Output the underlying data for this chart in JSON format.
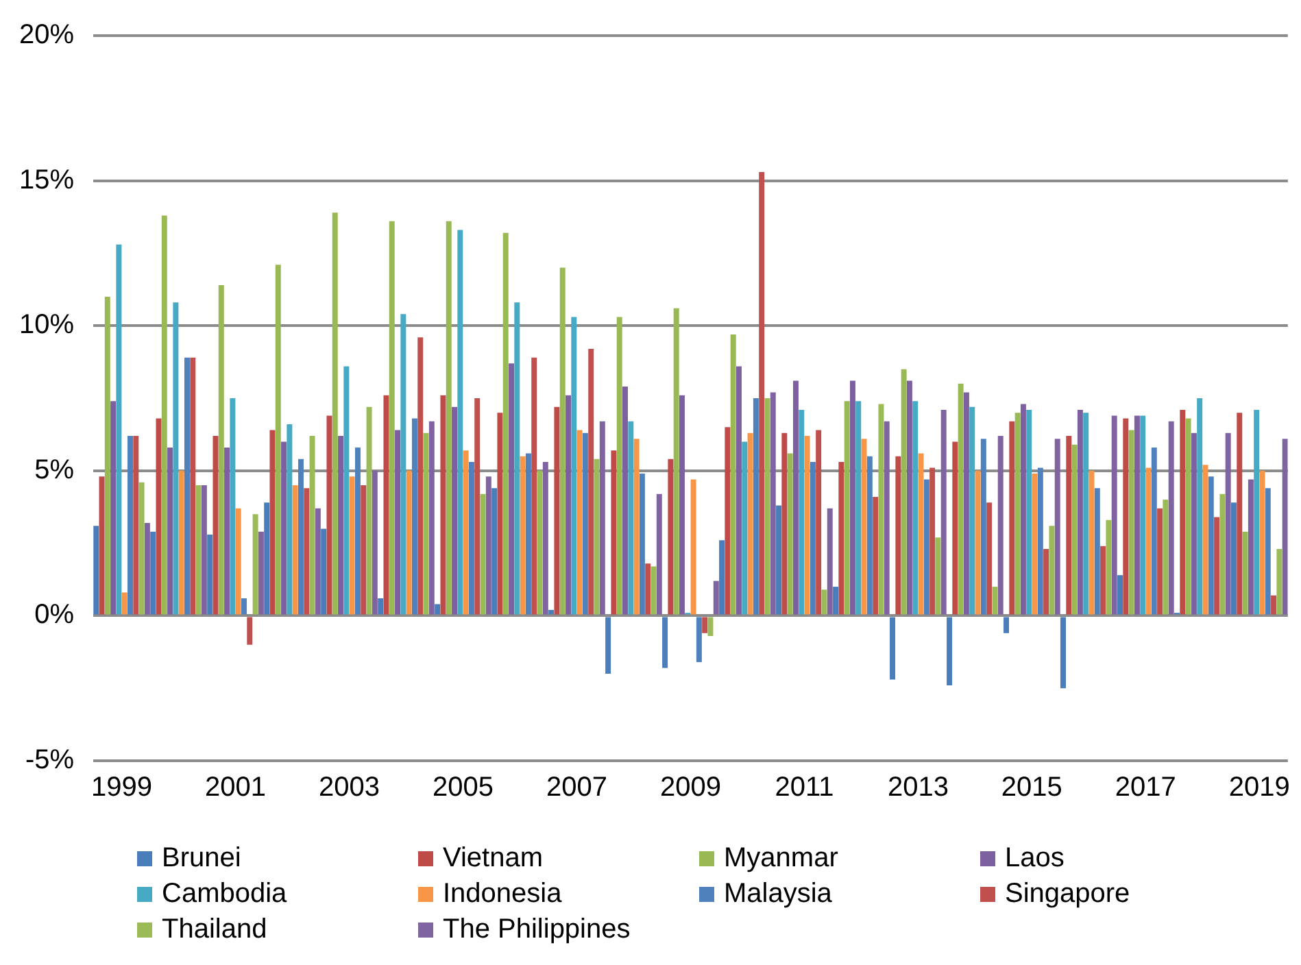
{
  "chart_data": {
    "type": "bar",
    "categories": [
      "1999",
      null,
      "2001",
      null,
      "2003",
      null,
      "2005",
      null,
      "2007",
      null,
      "2009",
      null,
      "2011",
      null,
      "2013",
      null,
      "2015",
      null,
      "2017",
      null,
      "2019"
    ],
    "ylim": [
      -5,
      20
    ],
    "yticks": [
      {
        "value": -5,
        "label": "-5%"
      },
      {
        "value": 0,
        "label": "0%"
      },
      {
        "value": 5,
        "label": "5%"
      },
      {
        "value": 10,
        "label": "10%"
      },
      {
        "value": 15,
        "label": "15%"
      },
      {
        "value": 20,
        "label": "20%"
      }
    ],
    "grid": "y",
    "legend": "bottom",
    "series": [
      {
        "name": "Brunei",
        "color": "#4a7ebb",
        "values": [
          3.1,
          2.9,
          2.8,
          3.9,
          3.0,
          0.6,
          0.4,
          4.4,
          0.2,
          -2.0,
          -1.8,
          2.6,
          3.8,
          1.0,
          -2.2,
          -2.4,
          -0.6,
          -2.5,
          1.4,
          0.1,
          3.9
        ]
      },
      {
        "name": "Vietnam",
        "color": "#be4b48",
        "values": [
          4.8,
          6.8,
          6.2,
          6.4,
          6.9,
          7.6,
          7.6,
          7.0,
          7.2,
          5.7,
          5.4,
          6.5,
          6.3,
          5.3,
          5.5,
          6.0,
          6.7,
          6.2,
          6.8,
          7.1,
          7.0
        ]
      },
      {
        "name": "Myanmar",
        "color": "#98b954",
        "values": [
          11.0,
          13.8,
          11.4,
          12.1,
          13.9,
          13.6,
          13.6,
          13.2,
          12.0,
          10.3,
          10.6,
          9.7,
          5.6,
          7.4,
          8.5,
          8.0,
          7.0,
          5.9,
          6.4,
          6.8,
          2.9
        ]
      },
      {
        "name": "Laos",
        "color": "#7d60a0",
        "values": [
          7.4,
          5.8,
          5.8,
          6.0,
          6.2,
          6.4,
          7.2,
          8.7,
          7.6,
          7.9,
          7.6,
          8.6,
          8.1,
          8.1,
          8.1,
          7.7,
          7.3,
          7.1,
          6.9,
          6.3,
          4.7
        ]
      },
      {
        "name": "Cambodia",
        "color": "#46aac5",
        "values": [
          12.8,
          10.8,
          7.5,
          6.6,
          8.6,
          10.4,
          13.3,
          10.8,
          10.3,
          6.7,
          0.1,
          6.0,
          7.1,
          7.4,
          7.4,
          7.2,
          7.1,
          7.0,
          6.9,
          7.5,
          7.1
        ]
      },
      {
        "name": "Indonesia",
        "color": "#f79646",
        "values": [
          0.8,
          5.0,
          3.7,
          4.5,
          4.8,
          5.0,
          5.7,
          5.5,
          6.4,
          6.1,
          4.7,
          6.3,
          6.2,
          6.1,
          5.6,
          5.0,
          4.9,
          5.0,
          5.1,
          5.2,
          5.0
        ]
      },
      {
        "name": "Malaysia",
        "color": "#4f81bd",
        "values": [
          6.2,
          8.9,
          0.6,
          5.4,
          5.8,
          6.8,
          5.3,
          5.6,
          6.3,
          4.9,
          -1.6,
          7.5,
          5.3,
          5.5,
          4.7,
          6.1,
          5.1,
          4.4,
          5.8,
          4.8,
          4.4
        ]
      },
      {
        "name": "Singapore",
        "color": "#c0504d",
        "values": [
          6.2,
          8.9,
          -1.0,
          4.4,
          4.5,
          9.6,
          7.5,
          8.9,
          9.2,
          1.8,
          -0.6,
          15.3,
          6.4,
          4.1,
          5.1,
          3.9,
          2.3,
          2.4,
          3.7,
          3.4,
          0.7
        ]
      },
      {
        "name": "Thailand",
        "color": "#9bbb59",
        "values": [
          4.6,
          4.5,
          3.5,
          6.2,
          7.2,
          6.3,
          4.2,
          5.0,
          5.4,
          1.7,
          -0.7,
          7.5,
          0.9,
          7.3,
          2.7,
          1.0,
          3.1,
          3.3,
          4.0,
          4.2,
          2.3
        ]
      },
      {
        "name": "The Philippines",
        "color": "#8064a2",
        "values": [
          3.2,
          4.5,
          2.9,
          3.7,
          5.0,
          6.7,
          4.8,
          5.3,
          6.7,
          4.2,
          1.2,
          7.7,
          3.7,
          6.7,
          7.1,
          6.2,
          6.1,
          6.9,
          6.7,
          6.3,
          6.1
        ]
      }
    ]
  }
}
